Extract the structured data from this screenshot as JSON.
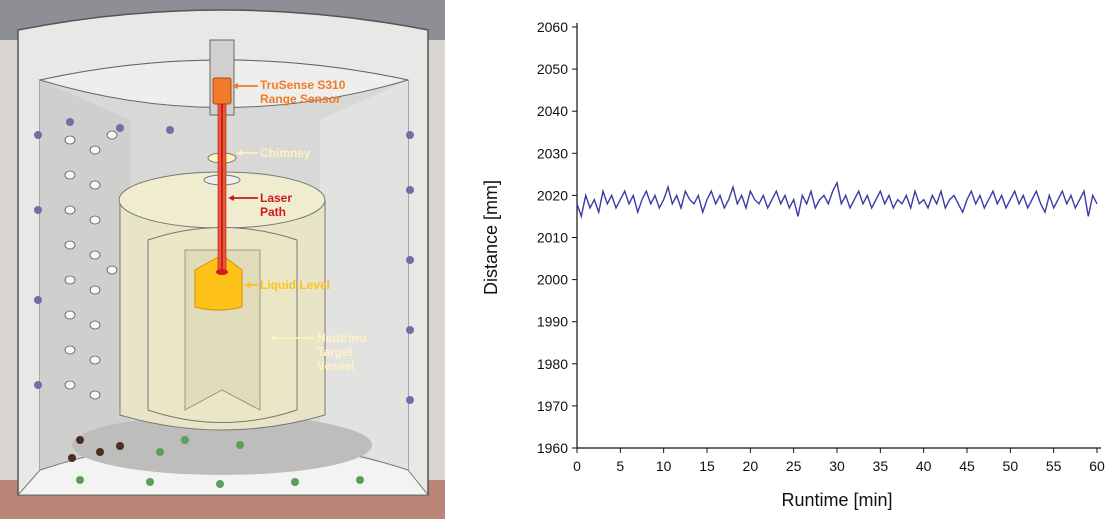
{
  "diagram": {
    "labels": {
      "sensor_line1": "TruSense S310",
      "sensor_line2": "Range Sensor",
      "chimney": "Chimney",
      "laser_line1": "Laser",
      "laser_line2": "Path",
      "liquid": "Liquid Level",
      "vessel_line1": "Neutrino",
      "vessel_line2": "Target",
      "vessel_line3": "Vessel"
    },
    "colors": {
      "sensor": "#f07b2a",
      "chimney": "#fff2c0",
      "laser": "#d11a1a",
      "liquid": "#ffc21a",
      "vessel": "#fff2c0"
    }
  },
  "chart_data": {
    "type": "line",
    "xlabel": "Runtime [min]",
    "ylabel": "Distance [mm]",
    "xlim": [
      0,
      60
    ],
    "ylim": [
      1960,
      2060
    ],
    "xticks": [
      0,
      5,
      10,
      15,
      20,
      25,
      30,
      35,
      40,
      45,
      50,
      55,
      60
    ],
    "yticks": [
      1960,
      1970,
      1980,
      1990,
      2000,
      2010,
      2020,
      2030,
      2040,
      2050,
      2060
    ],
    "grid": false,
    "line_color": "#3b3ba8",
    "series": [
      {
        "x": [
          0,
          0.5,
          1,
          1.5,
          2,
          2.5,
          3,
          3.5,
          4,
          4.5,
          5,
          5.5,
          6,
          6.5,
          7,
          7.5,
          8,
          8.5,
          9,
          9.5,
          10,
          10.5,
          11,
          11.5,
          12,
          12.5,
          13,
          13.5,
          14,
          14.5,
          15,
          15.5,
          16,
          16.5,
          17,
          17.5,
          18,
          18.5,
          19,
          19.5,
          20,
          20.5,
          21,
          21.5,
          22,
          22.5,
          23,
          23.5,
          24,
          24.5,
          25,
          25.5,
          26,
          26.5,
          27,
          27.5,
          28,
          28.5,
          29,
          29.5,
          30,
          30.5,
          31,
          31.5,
          32,
          32.5,
          33,
          33.5,
          34,
          34.5,
          35,
          35.5,
          36,
          36.5,
          37,
          37.5,
          38,
          38.5,
          39,
          39.5,
          40,
          40.5,
          41,
          41.5,
          42,
          42.5,
          43,
          43.5,
          44,
          44.5,
          45,
          45.5,
          46,
          46.5,
          47,
          47.5,
          48,
          48.5,
          49,
          49.5,
          50,
          50.5,
          51,
          51.5,
          52,
          52.5,
          53,
          53.5,
          54,
          54.5,
          55,
          55.5,
          56,
          56.5,
          57,
          57.5,
          58,
          58.5,
          59,
          59.5,
          60
        ],
        "values": [
          2018,
          2015,
          2020,
          2017,
          2019,
          2016,
          2021,
          2018,
          2020,
          2017,
          2019,
          2021,
          2018,
          2020,
          2016,
          2019,
          2021,
          2018,
          2020,
          2017,
          2019,
          2022,
          2018,
          2020,
          2017,
          2021,
          2019,
          2018,
          2020,
          2016,
          2019,
          2021,
          2018,
          2020,
          2017,
          2019,
          2022,
          2018,
          2020,
          2017,
          2021,
          2019,
          2018,
          2020,
          2017,
          2019,
          2021,
          2018,
          2020,
          2017,
          2019,
          2015,
          2020,
          2018,
          2021,
          2017,
          2019,
          2020,
          2018,
          2021,
          2023,
          2018,
          2020,
          2017,
          2019,
          2021,
          2018,
          2020,
          2017,
          2019,
          2021,
          2018,
          2020,
          2017,
          2019,
          2018,
          2020,
          2017,
          2021,
          2018,
          2019,
          2017,
          2020,
          2018,
          2021,
          2017,
          2019,
          2020,
          2018,
          2016,
          2019,
          2021,
          2018,
          2020,
          2017,
          2019,
          2021,
          2018,
          2020,
          2017,
          2019,
          2021,
          2018,
          2020,
          2017,
          2019,
          2021,
          2018,
          2016,
          2020,
          2017,
          2019,
          2021,
          2018,
          2020,
          2017,
          2019,
          2021,
          2015,
          2020,
          2018
        ]
      }
    ]
  }
}
